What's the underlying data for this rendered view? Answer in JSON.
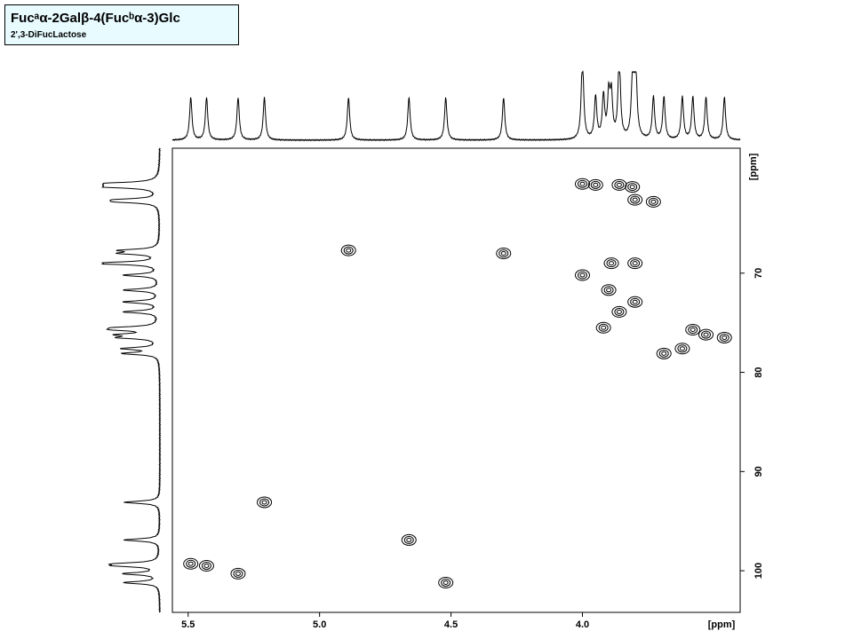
{
  "chart_data": {
    "type": "contour",
    "title": "Fucᵃα-2Galβ-4(Fucᵇα-3)Glc",
    "subtitle": "2',3-DiFucLactose",
    "x_label": "[ppm]",
    "y_label": "[ppm]",
    "xlim": [
      5.56,
      3.4
    ],
    "ylim": [
      57.4,
      104.2
    ],
    "xticks": [
      5.5,
      {
        "value": 5,
        "label": "5.0"
      },
      4.5,
      {
        "value": 4,
        "label": "4.0"
      }
    ],
    "yticks": [
      70,
      80,
      90,
      100
    ],
    "color": "#000000",
    "x": [
      5.49,
      5.43,
      5.31,
      5.21,
      4.89,
      4.66,
      4.52,
      4.3,
      4.0,
      3.95,
      3.86,
      3.81,
      3.8,
      3.73,
      4.0,
      3.89,
      3.8,
      3.9,
      3.8,
      3.86,
      3.92,
      3.69,
      3.62,
      3.58,
      3.53,
      3.46
    ],
    "values": [
      99.3,
      99.5,
      100.3,
      93.1,
      67.7,
      96.9,
      101.2,
      68.0,
      61.0,
      61.1,
      61.1,
      61.3,
      62.6,
      62.8,
      70.2,
      69.0,
      69.0,
      71.7,
      72.9,
      73.9,
      75.5,
      78.1,
      77.6,
      75.7,
      76.2,
      76.5
    ]
  }
}
